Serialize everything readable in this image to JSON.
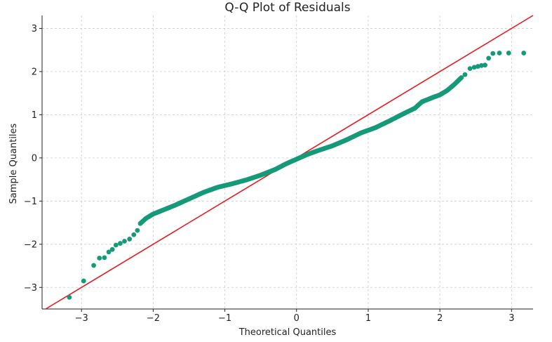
{
  "chart_data": {
    "type": "scatter",
    "title": "Q-Q Plot of Residuals",
    "xlabel": "Theoretical Quantiles",
    "ylabel": "Sample Quantiles",
    "xlim": [
      -3.55,
      3.3
    ],
    "ylim": [
      -3.5,
      3.3
    ],
    "grid": true,
    "x_ticks": [
      {
        "value": -3,
        "label": "−3"
      },
      {
        "value": -2,
        "label": "−2"
      },
      {
        "value": -1,
        "label": "−1"
      },
      {
        "value": 0,
        "label": "0"
      },
      {
        "value": 1,
        "label": "1"
      },
      {
        "value": 2,
        "label": "2"
      },
      {
        "value": 3,
        "label": "3"
      }
    ],
    "y_ticks": [
      {
        "value": -3,
        "label": "−3"
      },
      {
        "value": -2,
        "label": "−2"
      },
      {
        "value": -1,
        "label": "−1"
      },
      {
        "value": 0,
        "label": "0"
      },
      {
        "value": 1,
        "label": "1"
      },
      {
        "value": 2,
        "label": "2"
      },
      {
        "value": 3,
        "label": "3"
      }
    ],
    "point_color": "#159a78",
    "line_color": "#e41a1c",
    "reference_line": {
      "slope": 1,
      "intercept": 0
    },
    "series": [
      {
        "curve": [
          [
            -2.18,
            -1.52
          ],
          [
            -2.1,
            -1.4
          ],
          [
            -2.0,
            -1.3
          ],
          [
            -1.85,
            -1.2
          ],
          [
            -1.7,
            -1.1
          ],
          [
            -1.5,
            -0.95
          ],
          [
            -1.3,
            -0.8
          ],
          [
            -1.1,
            -0.68
          ],
          [
            -0.9,
            -0.6
          ],
          [
            -0.7,
            -0.51
          ],
          [
            -0.5,
            -0.4
          ],
          [
            -0.3,
            -0.27
          ],
          [
            -0.15,
            -0.14
          ],
          [
            0.0,
            -0.03
          ],
          [
            0.15,
            0.08
          ],
          [
            0.3,
            0.17
          ],
          [
            0.5,
            0.28
          ],
          [
            0.7,
            0.42
          ],
          [
            0.9,
            0.58
          ],
          [
            1.1,
            0.7
          ],
          [
            1.3,
            0.86
          ],
          [
            1.5,
            1.03
          ],
          [
            1.65,
            1.15
          ],
          [
            1.75,
            1.3
          ],
          [
            1.9,
            1.4
          ],
          [
            2.0,
            1.46
          ],
          [
            2.1,
            1.56
          ],
          [
            2.2,
            1.7
          ],
          [
            2.3,
            1.86
          ]
        ],
        "left_tail": [
          [
            -3.17,
            -3.23
          ],
          [
            -2.97,
            -2.85
          ],
          [
            -2.83,
            -2.49
          ],
          [
            -2.75,
            -2.32
          ],
          [
            -2.68,
            -2.31
          ],
          [
            -2.62,
            -2.18
          ],
          [
            -2.57,
            -2.12
          ],
          [
            -2.52,
            -2.02
          ],
          [
            -2.46,
            -1.98
          ],
          [
            -2.4,
            -1.93
          ],
          [
            -2.33,
            -1.88
          ],
          [
            -2.27,
            -1.78
          ],
          [
            -2.22,
            -1.68
          ]
        ],
        "right_tail": [
          [
            2.35,
            1.93
          ],
          [
            2.42,
            2.07
          ],
          [
            2.48,
            2.1
          ],
          [
            2.53,
            2.12
          ],
          [
            2.58,
            2.14
          ],
          [
            2.63,
            2.15
          ],
          [
            2.68,
            2.31
          ],
          [
            2.74,
            2.42
          ],
          [
            2.83,
            2.43
          ],
          [
            2.96,
            2.43
          ],
          [
            3.17,
            2.43
          ]
        ]
      }
    ]
  }
}
